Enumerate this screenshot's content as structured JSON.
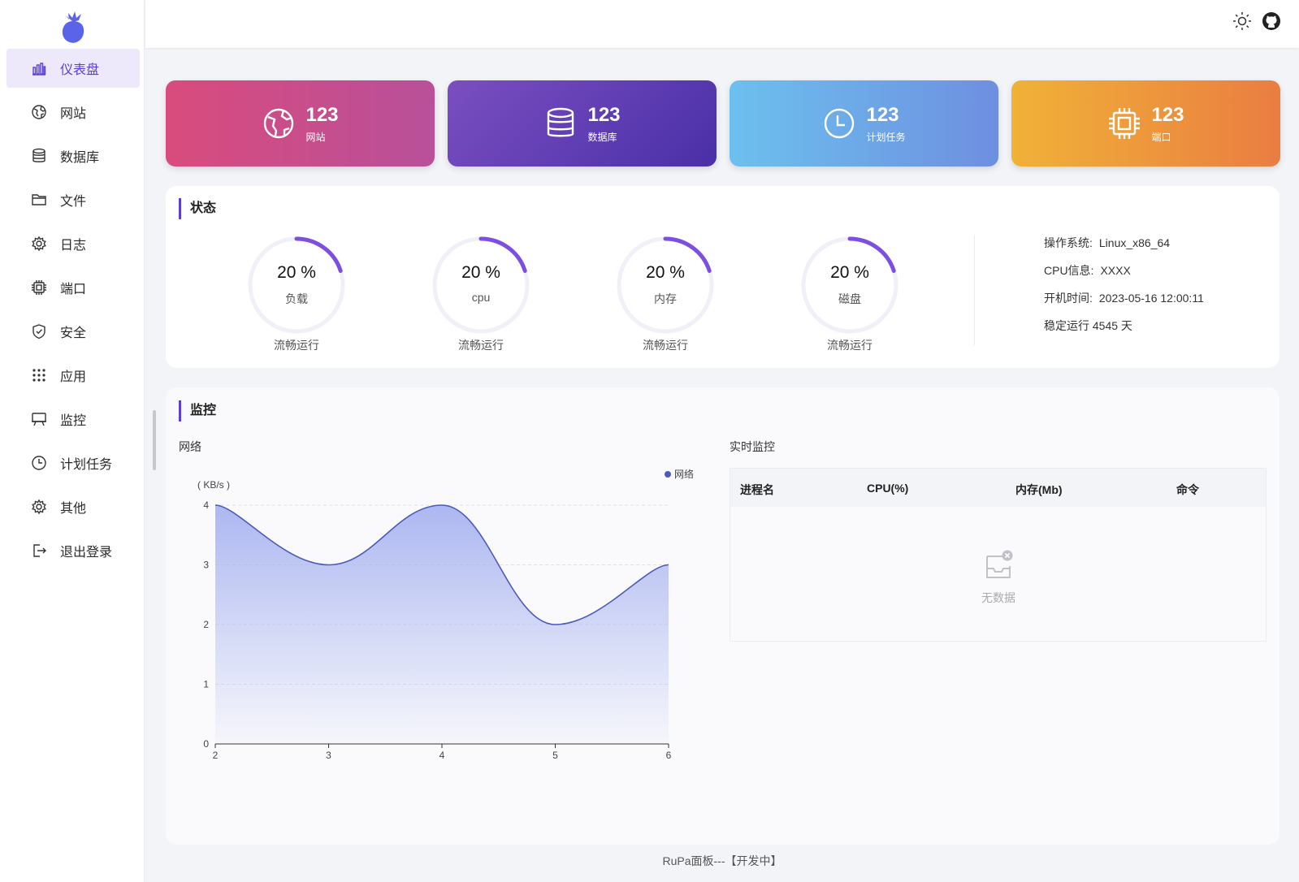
{
  "sidebar": {
    "items": [
      {
        "label": "仪表盘",
        "icon": "bar-chart-icon"
      },
      {
        "label": "网站",
        "icon": "globe-icon"
      },
      {
        "label": "数据库",
        "icon": "database-icon"
      },
      {
        "label": "文件",
        "icon": "folder-icon"
      },
      {
        "label": "日志",
        "icon": "gear-icon"
      },
      {
        "label": "端口",
        "icon": "chip-icon"
      },
      {
        "label": "安全",
        "icon": "shield-icon"
      },
      {
        "label": "应用",
        "icon": "grid-icon"
      },
      {
        "label": "监控",
        "icon": "monitor-icon"
      },
      {
        "label": "计划任务",
        "icon": "clock-icon"
      },
      {
        "label": "其他",
        "icon": "gear-icon"
      },
      {
        "label": "退出登录",
        "icon": "logout-icon"
      }
    ]
  },
  "header": {
    "icons": [
      "sun-icon",
      "github-icon"
    ]
  },
  "cards": [
    {
      "value": "123",
      "label": "网站",
      "icon": "globe-icon"
    },
    {
      "value": "123",
      "label": "数据库",
      "icon": "database-icon"
    },
    {
      "value": "123",
      "label": "计划任务",
      "icon": "clock-icon"
    },
    {
      "value": "123",
      "label": "端口",
      "icon": "chip-icon"
    }
  ],
  "status": {
    "title": "状态",
    "gauges": [
      {
        "value": "20 %",
        "label": "负载",
        "footer": "流畅运行",
        "percent": 0.2
      },
      {
        "value": "20 %",
        "label": "cpu",
        "footer": "流畅运行",
        "percent": 0.2
      },
      {
        "value": "20 %",
        "label": "内存",
        "footer": "流畅运行",
        "percent": 0.2
      },
      {
        "value": "20 %",
        "label": "磁盘",
        "footer": "流畅运行",
        "percent": 0.2
      }
    ],
    "info": {
      "os_key": "操作系统:",
      "os_val": "Linux_x86_64",
      "cpu_key": "CPU信息:",
      "cpu_val": "XXXX",
      "boot_key": "开机时间:",
      "boot_val": "2023-05-16 12:00:11",
      "uptime": "稳定运行 4545 天"
    }
  },
  "monitor": {
    "title": "监控",
    "network_label": "网络",
    "realtime_label": "实时监控",
    "table": {
      "columns": [
        "进程名",
        "CPU(%)",
        "内存(Mb)",
        "命令"
      ],
      "empty_text": "无数据"
    }
  },
  "chart_data": {
    "type": "area",
    "x": [
      2,
      3,
      4,
      5,
      6
    ],
    "series": [
      {
        "name": "网络",
        "values": [
          4,
          3,
          4,
          2,
          3
        ]
      }
    ],
    "ylabel": "( KB/s )",
    "ylim": [
      0,
      4
    ],
    "xlim": [
      2,
      6
    ],
    "yticks": [
      "0",
      "1",
      "2",
      "3",
      "4"
    ],
    "xticks": [
      "2",
      "3",
      "4",
      "5",
      "6"
    ],
    "legend": "top-right",
    "color": "#4a5bb8",
    "grid": true
  },
  "footer": "RuPa面板---【开发中】",
  "colors": {
    "accent": "#5b3fd4",
    "gauge_arc": "#7c4fe0",
    "gauge_track": "#f0f1f8"
  }
}
